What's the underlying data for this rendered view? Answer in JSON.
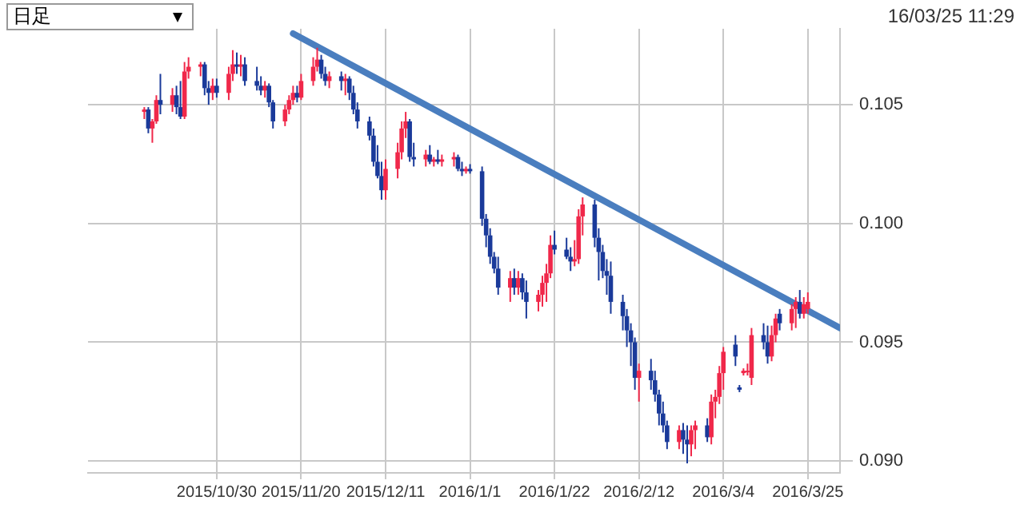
{
  "chart_data": {
    "type": "candlestick",
    "annotations": [
      "日足",
      "16/03/25 11:29"
    ],
    "x": [
      "2015-10-12",
      "2015-10-13",
      "2015-10-14",
      "2015-10-15",
      "2015-10-16",
      "2015-10-19",
      "2015-10-20",
      "2015-10-21",
      "2015-10-22",
      "2015-10-23",
      "2015-10-26",
      "2015-10-27",
      "2015-10-28",
      "2015-10-29",
      "2015-10-30",
      "2015-11-02",
      "2015-11-03",
      "2015-11-04",
      "2015-11-05",
      "2015-11-06",
      "2015-11-09",
      "2015-11-10",
      "2015-11-11",
      "2015-11-12",
      "2015-11-13",
      "2015-11-16",
      "2015-11-17",
      "2015-11-18",
      "2015-11-19",
      "2015-11-20",
      "2015-11-23",
      "2015-11-24",
      "2015-11-25",
      "2015-11-26",
      "2015-11-27",
      "2015-11-30",
      "2015-12-01",
      "2015-12-02",
      "2015-12-03",
      "2015-12-04",
      "2015-12-07",
      "2015-12-08",
      "2015-12-09",
      "2015-12-10",
      "2015-12-11",
      "2015-12-14",
      "2015-12-15",
      "2015-12-16",
      "2015-12-17",
      "2015-12-18",
      "2015-12-21",
      "2015-12-22",
      "2015-12-23",
      "2015-12-24",
      "2015-12-25",
      "2015-12-28",
      "2015-12-29",
      "2015-12-30",
      "2015-12-31",
      "2016-01-01",
      "2016-01-04",
      "2016-01-05",
      "2016-01-06",
      "2016-01-07",
      "2016-01-08",
      "2016-01-11",
      "2016-01-12",
      "2016-01-13",
      "2016-01-14",
      "2016-01-15",
      "2016-01-18",
      "2016-01-19",
      "2016-01-20",
      "2016-01-21",
      "2016-01-22",
      "2016-01-25",
      "2016-01-26",
      "2016-01-27",
      "2016-01-28",
      "2016-01-29",
      "2016-02-01",
      "2016-02-02",
      "2016-02-03",
      "2016-02-04",
      "2016-02-05",
      "2016-02-08",
      "2016-02-09",
      "2016-02-10",
      "2016-02-11",
      "2016-02-12",
      "2016-02-15",
      "2016-02-16",
      "2016-02-17",
      "2016-02-18",
      "2016-02-19",
      "2016-02-22",
      "2016-02-23",
      "2016-02-24",
      "2016-02-25",
      "2016-02-26",
      "2016-02-29",
      "2016-03-01",
      "2016-03-02",
      "2016-03-03",
      "2016-03-04",
      "2016-03-07",
      "2016-03-08",
      "2016-03-09",
      "2016-03-10",
      "2016-03-11",
      "2016-03-14",
      "2016-03-15",
      "2016-03-16",
      "2016-03-17",
      "2016-03-18",
      "2016-03-21",
      "2016-03-22",
      "2016-03-23",
      "2016-03-24",
      "2016-03-25"
    ],
    "ohlc": [
      [
        0.1047,
        0.1049,
        0.1044,
        0.1048
      ],
      [
        0.1048,
        0.1049,
        0.1038,
        0.104
      ],
      [
        0.104,
        0.1044,
        0.1034,
        0.1043
      ],
      [
        0.1043,
        0.1054,
        0.1042,
        0.1052
      ],
      [
        0.1052,
        0.1063,
        0.1046,
        0.105
      ],
      [
        0.105,
        0.1057,
        0.1047,
        0.1054
      ],
      [
        0.1054,
        0.1058,
        0.1046,
        0.1049
      ],
      [
        0.1049,
        0.106,
        0.1044,
        0.1045
      ],
      [
        0.1045,
        0.1068,
        0.1044,
        0.1064
      ],
      [
        0.1064,
        0.107,
        0.1061,
        0.1066
      ],
      [
        0.1066,
        0.1068,
        0.1062,
        0.1067
      ],
      [
        0.1067,
        0.1068,
        0.1054,
        0.1057
      ],
      [
        0.1057,
        0.106,
        0.105,
        0.1055
      ],
      [
        0.1055,
        0.1061,
        0.1052,
        0.1058
      ],
      [
        0.1058,
        0.1061,
        0.1053,
        0.1055
      ],
      [
        0.1055,
        0.1066,
        0.1052,
        0.1063
      ],
      [
        0.1063,
        0.1073,
        0.106,
        0.1067
      ],
      [
        0.1067,
        0.1072,
        0.1063,
        0.1066
      ],
      [
        0.1066,
        0.1071,
        0.1062,
        0.1067
      ],
      [
        0.1067,
        0.107,
        0.1058,
        0.106
      ],
      [
        0.106,
        0.1066,
        0.1056,
        0.1058
      ],
      [
        0.1058,
        0.1062,
        0.1054,
        0.1056
      ],
      [
        0.1056,
        0.106,
        0.1053,
        0.1058
      ],
      [
        0.1058,
        0.1059,
        0.1049,
        0.1051
      ],
      [
        0.1051,
        0.1052,
        0.104,
        0.1043
      ],
      [
        0.1043,
        0.105,
        0.1041,
        0.1048
      ],
      [
        0.1048,
        0.1054,
        0.1046,
        0.1052
      ],
      [
        0.1052,
        0.1058,
        0.105,
        0.1055
      ],
      [
        0.1055,
        0.1058,
        0.1051,
        0.1053
      ],
      [
        0.1053,
        0.1063,
        0.1052,
        0.106
      ],
      [
        0.106,
        0.107,
        0.1058,
        0.1066
      ],
      [
        0.1066,
        0.1074,
        0.1064,
        0.1069
      ],
      [
        0.1069,
        0.1071,
        0.1061,
        0.1063
      ],
      [
        0.1063,
        0.1066,
        0.1058,
        0.106
      ],
      [
        0.106,
        0.1064,
        0.1057,
        0.1062
      ],
      [
        0.1062,
        0.1064,
        0.1056,
        0.106
      ],
      [
        0.106,
        0.1063,
        0.1054,
        0.1061
      ],
      [
        0.1061,
        0.1062,
        0.1052,
        0.1055
      ],
      [
        0.1055,
        0.1058,
        0.1046,
        0.1048
      ],
      [
        0.1048,
        0.1051,
        0.104,
        0.1043
      ],
      [
        0.1043,
        0.1045,
        0.1035,
        0.1037
      ],
      [
        0.1037,
        0.104,
        0.1024,
        0.1026
      ],
      [
        0.1026,
        0.1033,
        0.1019,
        0.102
      ],
      [
        0.102,
        0.1026,
        0.101,
        0.1014
      ],
      [
        0.1014,
        0.1027,
        0.101,
        0.1023
      ],
      [
        0.1023,
        0.1034,
        0.1019,
        0.103
      ],
      [
        0.103,
        0.1043,
        0.1027,
        0.104
      ],
      [
        0.104,
        0.1047,
        0.1036,
        0.1043
      ],
      [
        0.1043,
        0.1044,
        0.1026,
        0.1028
      ],
      [
        0.1028,
        0.1034,
        0.1024,
        0.1027
      ],
      [
        0.1027,
        0.1031,
        0.1024,
        0.1029
      ],
      [
        0.1029,
        0.1033,
        0.1025,
        0.1026
      ],
      [
        0.1026,
        0.1028,
        0.1024,
        0.1027
      ],
      [
        0.1027,
        0.1031,
        0.1025,
        0.1026
      ],
      [
        0.1026,
        0.1029,
        0.1024,
        0.1027
      ],
      [
        0.1027,
        0.103,
        0.1024,
        0.1028
      ],
      [
        0.1028,
        0.1029,
        0.1022,
        0.1023
      ],
      [
        0.1023,
        0.1026,
        0.102,
        0.1022
      ],
      [
        0.1022,
        0.1024,
        0.1021,
        0.1023
      ],
      [
        0.1023,
        0.1025,
        0.1021,
        0.1022
      ],
      [
        0.1022,
        0.1024,
        0.0999,
        0.1002
      ],
      [
        0.1002,
        0.1004,
        0.099,
        0.0995
      ],
      [
        0.0995,
        0.0998,
        0.0983,
        0.0986
      ],
      [
        0.0986,
        0.0988,
        0.0979,
        0.0981
      ],
      [
        0.0981,
        0.0986,
        0.097,
        0.0973
      ],
      [
        0.0973,
        0.098,
        0.0967,
        0.0977
      ],
      [
        0.0977,
        0.0981,
        0.097,
        0.0973
      ],
      [
        0.0973,
        0.098,
        0.097,
        0.0977
      ],
      [
        0.0977,
        0.0979,
        0.0968,
        0.0971
      ],
      [
        0.0971,
        0.0976,
        0.096,
        0.0967
      ],
      [
        0.0967,
        0.0972,
        0.0963,
        0.097
      ],
      [
        0.097,
        0.0978,
        0.0965,
        0.0975
      ],
      [
        0.0975,
        0.0983,
        0.0967,
        0.0979
      ],
      [
        0.0979,
        0.0995,
        0.0977,
        0.0991
      ],
      [
        0.0991,
        0.0997,
        0.0987,
        0.0989
      ],
      [
        0.0989,
        0.0994,
        0.0985,
        0.0986
      ],
      [
        0.0986,
        0.099,
        0.098,
        0.0984
      ],
      [
        0.0984,
        0.0993,
        0.0982,
        0.0985
      ],
      [
        0.0985,
        0.1006,
        0.0983,
        0.1003
      ],
      [
        0.1003,
        0.1011,
        0.0995,
        0.1008
      ],
      [
        0.1008,
        0.101,
        0.099,
        0.0994
      ],
      [
        0.0994,
        0.0998,
        0.0976,
        0.0988
      ],
      [
        0.0988,
        0.0991,
        0.0977,
        0.098
      ],
      [
        0.098,
        0.0985,
        0.097,
        0.0978
      ],
      [
        0.0978,
        0.0984,
        0.0962,
        0.0967
      ],
      [
        0.0967,
        0.097,
        0.0955,
        0.0961
      ],
      [
        0.0961,
        0.0964,
        0.0948,
        0.0955
      ],
      [
        0.0955,
        0.0958,
        0.094,
        0.095
      ],
      [
        0.095,
        0.0952,
        0.093,
        0.0935
      ],
      [
        0.0935,
        0.0941,
        0.0925,
        0.0938
      ],
      [
        0.0938,
        0.0943,
        0.093,
        0.0934
      ],
      [
        0.0934,
        0.0938,
        0.0925,
        0.0928
      ],
      [
        0.0928,
        0.093,
        0.0915,
        0.092
      ],
      [
        0.092,
        0.0925,
        0.0912,
        0.0915
      ],
      [
        0.0915,
        0.0917,
        0.0905,
        0.0908
      ],
      [
        0.0908,
        0.0915,
        0.0905,
        0.0913
      ],
      [
        0.0913,
        0.0916,
        0.0903,
        0.0909
      ],
      [
        0.0909,
        0.0915,
        0.0899,
        0.0907
      ],
      [
        0.0907,
        0.0915,
        0.0902,
        0.0913
      ],
      [
        0.0913,
        0.0917,
        0.0905,
        0.0915
      ],
      [
        0.0915,
        0.0918,
        0.0908,
        0.091
      ],
      [
        0.091,
        0.0928,
        0.0907,
        0.0925
      ],
      [
        0.0925,
        0.093,
        0.0918,
        0.0927
      ],
      [
        0.0927,
        0.094,
        0.0924,
        0.0937
      ],
      [
        0.0937,
        0.0948,
        0.093,
        0.0946
      ],
      [
        0.0949,
        0.0953,
        0.094,
        0.0944
      ],
      [
        0.0931,
        0.0932,
        0.0929,
        0.093
      ],
      [
        0.0937,
        0.0939,
        0.0936,
        0.0938
      ],
      [
        0.0938,
        0.0941,
        0.0936,
        0.0938
      ],
      [
        0.0935,
        0.0956,
        0.0932,
        0.0953
      ],
      [
        0.0953,
        0.0958,
        0.0947,
        0.095
      ],
      [
        0.095,
        0.0957,
        0.0941,
        0.0944
      ],
      [
        0.0944,
        0.0957,
        0.0942,
        0.0953
      ],
      [
        0.0953,
        0.0962,
        0.095,
        0.096
      ],
      [
        0.0962,
        0.0964,
        0.0955,
        0.0958
      ],
      [
        0.0958,
        0.0966,
        0.0955,
        0.0964
      ],
      [
        0.0964,
        0.0969,
        0.0956,
        0.0967
      ],
      [
        0.0967,
        0.0972,
        0.096,
        0.0962
      ],
      [
        0.0962,
        0.0969,
        0.096,
        0.0966
      ],
      [
        0.0964,
        0.0971,
        0.0962,
        0.0967
      ]
    ],
    "colors": [
      "#f0284a",
      "#1a3a9a",
      "#f0284a",
      "#f0284a",
      "#1a3a9a",
      "#f0284a",
      "#1a3a9a",
      "#1a3a9a",
      "#f0284a",
      "#f0284a",
      "#f0284a",
      "#1a3a9a",
      "#1a3a9a",
      "#f0284a",
      "#1a3a9a",
      "#f0284a",
      "#f0284a",
      "#1a3a9a",
      "#f0284a",
      "#1a3a9a",
      "#1a3a9a",
      "#1a3a9a",
      "#f0284a",
      "#1a3a9a",
      "#1a3a9a",
      "#f0284a",
      "#f0284a",
      "#f0284a",
      "#1a3a9a",
      "#f0284a",
      "#f0284a",
      "#f0284a",
      "#1a3a9a",
      "#1a3a9a",
      "#f0284a",
      "#1a3a9a",
      "#f0284a",
      "#1a3a9a",
      "#1a3a9a",
      "#1a3a9a",
      "#1a3a9a",
      "#1a3a9a",
      "#1a3a9a",
      "#1a3a9a",
      "#f0284a",
      "#f0284a",
      "#f0284a",
      "#f0284a",
      "#1a3a9a",
      "#1a3a9a",
      "#f0284a",
      "#1a3a9a",
      "#f0284a",
      "#1a3a9a",
      "#f0284a",
      "#f0284a",
      "#1a3a9a",
      "#1a3a9a",
      "#f0284a",
      "#1a3a9a",
      "#1a3a9a",
      "#1a3a9a",
      "#1a3a9a",
      "#1a3a9a",
      "#1a3a9a",
      "#f0284a",
      "#1a3a9a",
      "#f0284a",
      "#1a3a9a",
      "#1a3a9a",
      "#f0284a",
      "#f0284a",
      "#f0284a",
      "#f0284a",
      "#1a3a9a",
      "#1a3a9a",
      "#1a3a9a",
      "#f0284a",
      "#f0284a",
      "#f0284a",
      "#1a3a9a",
      "#1a3a9a",
      "#1a3a9a",
      "#1a3a9a",
      "#1a3a9a",
      "#1a3a9a",
      "#1a3a9a",
      "#1a3a9a",
      "#1a3a9a",
      "#f0284a",
      "#1a3a9a",
      "#1a3a9a",
      "#1a3a9a",
      "#1a3a9a",
      "#1a3a9a",
      "#f0284a",
      "#1a3a9a",
      "#1a3a9a",
      "#f0284a",
      "#f0284a",
      "#1a3a9a",
      "#f0284a",
      "#f0284a",
      "#f0284a",
      "#f0284a",
      "#1a3a9a",
      "#1a3a9a",
      "#f0284a",
      "#f0284a",
      "#f0284a",
      "#1a3a9a",
      "#1a3a9a",
      "#f0284a",
      "#f0284a",
      "#1a3a9a",
      "#f0284a",
      "#f0284a",
      "#1a3a9a",
      "#f0284a",
      "#f0284a"
    ],
    "series": [
      {
        "type": "line",
        "x": [
          "2015-11-18",
          "2016-04-02"
        ],
        "values": [
          0.108,
          0.0956
        ],
        "color": "#4a7ebf"
      }
    ],
    "xlim": [
      "2015-09-28",
      "2016-04-02"
    ],
    "xticks": [
      {
        "value": "2015-10-30",
        "label": "2015/10/30"
      },
      {
        "value": "2015-11-20",
        "label": "2015/11/20"
      },
      {
        "value": "2015-12-11",
        "label": "2015/12/11"
      },
      {
        "value": "2016-01-01",
        "label": "2016/1/1"
      },
      {
        "value": "2016-01-22",
        "label": "2016/1/22"
      },
      {
        "value": "2016-02-12",
        "label": "2016/2/12"
      },
      {
        "value": "2016-03-04",
        "label": "2016/3/4"
      },
      {
        "value": "2016-03-25",
        "label": "2016/3/25"
      }
    ],
    "ylim": [
      0.0895,
      0.1082
    ],
    "yticks": [
      {
        "value": 0.09,
        "label": "0.090"
      },
      {
        "value": 0.095,
        "label": "0.095"
      },
      {
        "value": 0.1,
        "label": "0.100"
      },
      {
        "value": 0.105,
        "label": "0.105"
      }
    ],
    "grid": true,
    "legend": false
  }
}
